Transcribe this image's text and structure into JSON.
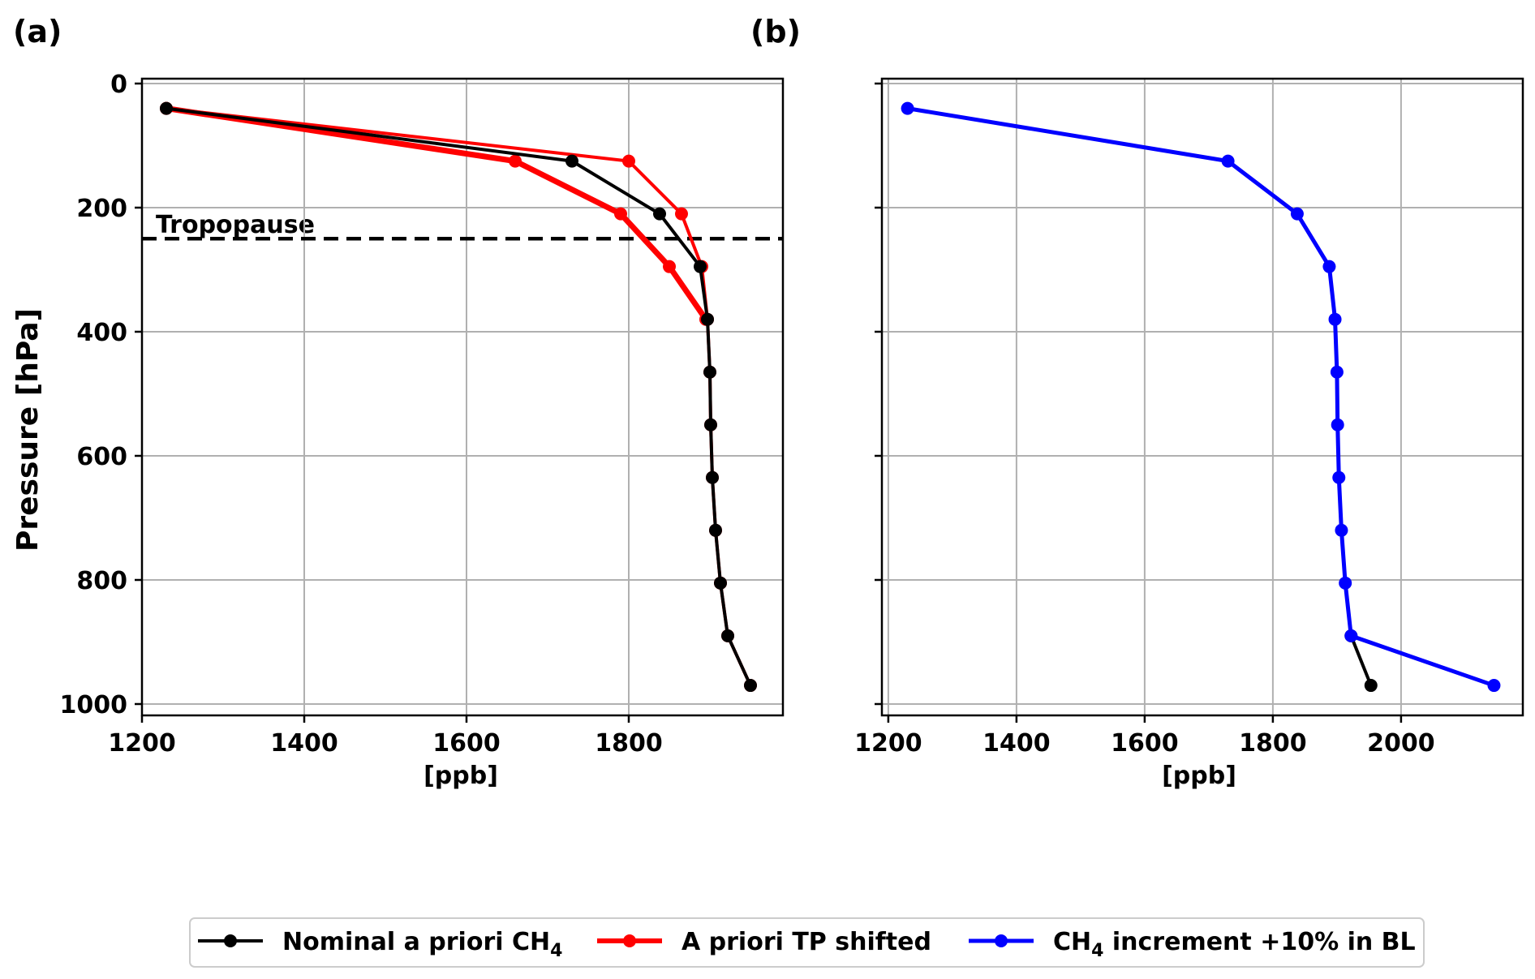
{
  "panels": [
    {
      "label": "(a)",
      "ylabel": "Pressure [hPa]",
      "xlabel": "[ppb]",
      "annotation": "Tropopause"
    },
    {
      "label": "(b)",
      "ylabel": "",
      "xlabel": "[ppb]",
      "annotation": ""
    }
  ],
  "legend": {
    "items": [
      {
        "text": "Nominal a priori CH",
        "sub": "4",
        "after": "",
        "color": "#000000"
      },
      {
        "text": "A priori TP shifted",
        "sub": "",
        "after": "",
        "color": "#ff0000"
      },
      {
        "text": "CH",
        "sub": "4",
        "after": " increment +10% in BL",
        "color": "#0000ff"
      }
    ]
  },
  "chart_data": [
    {
      "type": "line",
      "panel": "(a)",
      "xlabel": "[ppb]",
      "ylabel": "Pressure [hPa]",
      "xlim": [
        1200,
        1990
      ],
      "ylim": [
        1000,
        0
      ],
      "y_inverted": true,
      "xticks": [
        1200,
        1400,
        1600,
        1800
      ],
      "yticks": [
        0,
        200,
        400,
        600,
        800,
        1000
      ],
      "grid": true,
      "hline": {
        "y": 250,
        "style": "dashed",
        "label": "Tropopause"
      },
      "series": [
        {
          "name": "A priori TP shifted (thick)",
          "color": "#ff0000",
          "width": 7,
          "x": [
            1230,
            1660,
            1790,
            1850,
            1895
          ],
          "y": [
            40,
            125,
            210,
            295,
            380
          ]
        },
        {
          "name": "A priori TP shifted",
          "color": "#ff0000",
          "width": 4,
          "x": [
            1230,
            1800,
            1865,
            1890,
            1897,
            1900,
            1901,
            1903,
            1907,
            1913,
            1922,
            1950
          ],
          "y": [
            40,
            125,
            210,
            295,
            380,
            465,
            550,
            635,
            720,
            805,
            890,
            970
          ]
        },
        {
          "name": "Nominal a priori CH4",
          "color": "#000000",
          "width": 4,
          "x": [
            1230,
            1730,
            1838,
            1888,
            1897,
            1900,
            1901,
            1903,
            1907,
            1913,
            1922,
            1950
          ],
          "y": [
            40,
            125,
            210,
            295,
            380,
            465,
            550,
            635,
            720,
            805,
            890,
            970
          ]
        }
      ]
    },
    {
      "type": "line",
      "panel": "(b)",
      "xlabel": "[ppb]",
      "xlim": [
        1190,
        2190
      ],
      "ylim": [
        1000,
        0
      ],
      "y_inverted": true,
      "xticks": [
        1200,
        1400,
        1600,
        1800,
        2000
      ],
      "yticks": [
        0,
        200,
        400,
        600,
        800,
        1000
      ],
      "grid": true,
      "series": [
        {
          "name": "Nominal a priori CH4",
          "color": "#000000",
          "width": 4,
          "x": [
            1922,
            1953
          ],
          "y": [
            890,
            970
          ]
        },
        {
          "name": "CH4 increment +10% in BL",
          "color": "#0000ff",
          "width": 5,
          "x": [
            1230,
            1730,
            1838,
            1888,
            1897,
            1900,
            1901,
            1903,
            1907,
            1913,
            1922,
            2145
          ],
          "y": [
            40,
            125,
            210,
            295,
            380,
            465,
            550,
            635,
            720,
            805,
            890,
            970
          ]
        }
      ]
    }
  ]
}
